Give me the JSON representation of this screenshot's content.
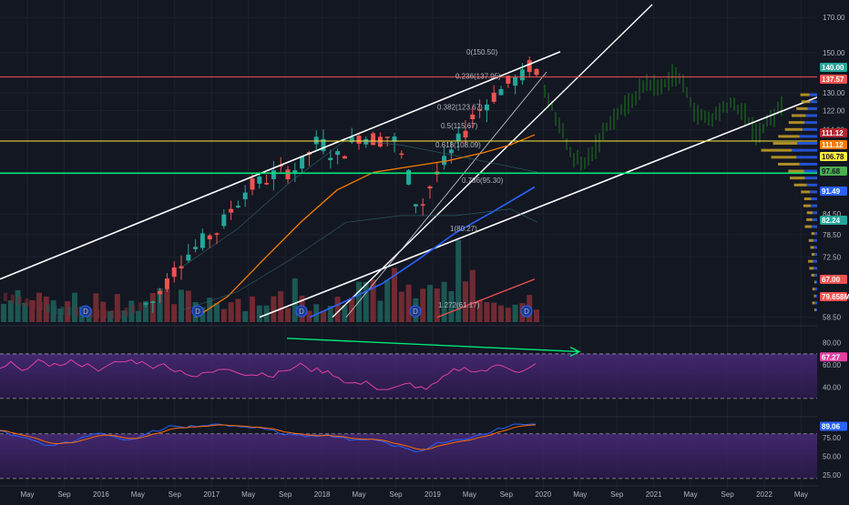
{
  "chart_data": [
    {
      "type": "candlestick",
      "panel": "price",
      "price_axis": {
        "ticks": [
          170.0,
          150.0,
          130.0,
          122.0,
          114.0,
          84.5,
          78.5,
          72.5,
          58.5
        ],
        "scale": "log",
        "ylim": [
          57.5,
          178
        ]
      },
      "time_axis": {
        "ticks": [
          "May",
          "Sep",
          "2016",
          "May",
          "Sep",
          "2017",
          "May",
          "Sep",
          "2018",
          "May",
          "Sep",
          "2019",
          "May",
          "Sep",
          "2020",
          "May",
          "Sep",
          "2021",
          "May",
          "Sep",
          "2022",
          "May"
        ]
      },
      "price_tags": [
        {
          "value": "140.00",
          "color": "#26a69a"
        },
        {
          "value": "137.57",
          "color": "#ef5350"
        },
        {
          "value": "111.12",
          "color": "#b22833"
        },
        {
          "value": "111.12",
          "color": "#f57c00"
        },
        {
          "value": "106.78",
          "color": "#ffeb3b"
        },
        {
          "value": "97.68",
          "color": "#4caf50"
        },
        {
          "value": "91.49",
          "color": "#2962ff"
        },
        {
          "value": "82.24",
          "color": "#26a69a"
        },
        {
          "value": "67.00",
          "color": "#ef5350"
        },
        {
          "value": "79.658M",
          "color": "#ef5350"
        }
      ],
      "fib_levels": [
        {
          "label": "0(150.50)",
          "value": 150.5
        },
        {
          "label": "0.236(137.95)",
          "value": 137.95
        },
        {
          "label": "0.382(123.67)",
          "value": 123.67
        },
        {
          "label": "0.5(115.67)",
          "value": 115.67
        },
        {
          "label": "0.618(108.09)",
          "value": 108.09
        },
        {
          "label": "0.786(95.30)",
          "value": 95.3
        },
        {
          "label": "1(80.27)",
          "value": 80.27
        },
        {
          "label": "1.272(61.17)",
          "value": 61.17
        }
      ],
      "horizontal_lines": [
        {
          "value": 137.57,
          "color": "#ef5350"
        },
        {
          "value": 109.5,
          "color": "#ffeb3b"
        },
        {
          "value": 97.68,
          "color": "#00e676"
        }
      ],
      "dividend_markers": [
        "D",
        "D",
        "D",
        "D",
        "D"
      ],
      "colors": {
        "up": "#26a69a",
        "down": "#ef5350",
        "projection": "#1b5e20",
        "ma_orange": "#f57c00",
        "ma_blue": "#2962ff",
        "channel": "#ffffff"
      }
    },
    {
      "type": "line",
      "panel": "rsi",
      "value_axis": {
        "ticks": [
          80.0,
          60.0,
          40.0
        ],
        "ylim": [
          16,
          92
        ]
      },
      "current_value": "67.27",
      "colors": {
        "line": "#e040a0",
        "band": "#3a2464",
        "divergence": "#00e676"
      }
    },
    {
      "type": "line",
      "panel": "stochastic",
      "value_axis": {
        "ticks": [
          75.0,
          50.0,
          25.0
        ],
        "ylim": [
          15,
          98
        ]
      },
      "current_value": "89.06",
      "colors": {
        "k": "#2962ff",
        "d": "#ff6d00",
        "band": "#3a2464"
      }
    }
  ]
}
